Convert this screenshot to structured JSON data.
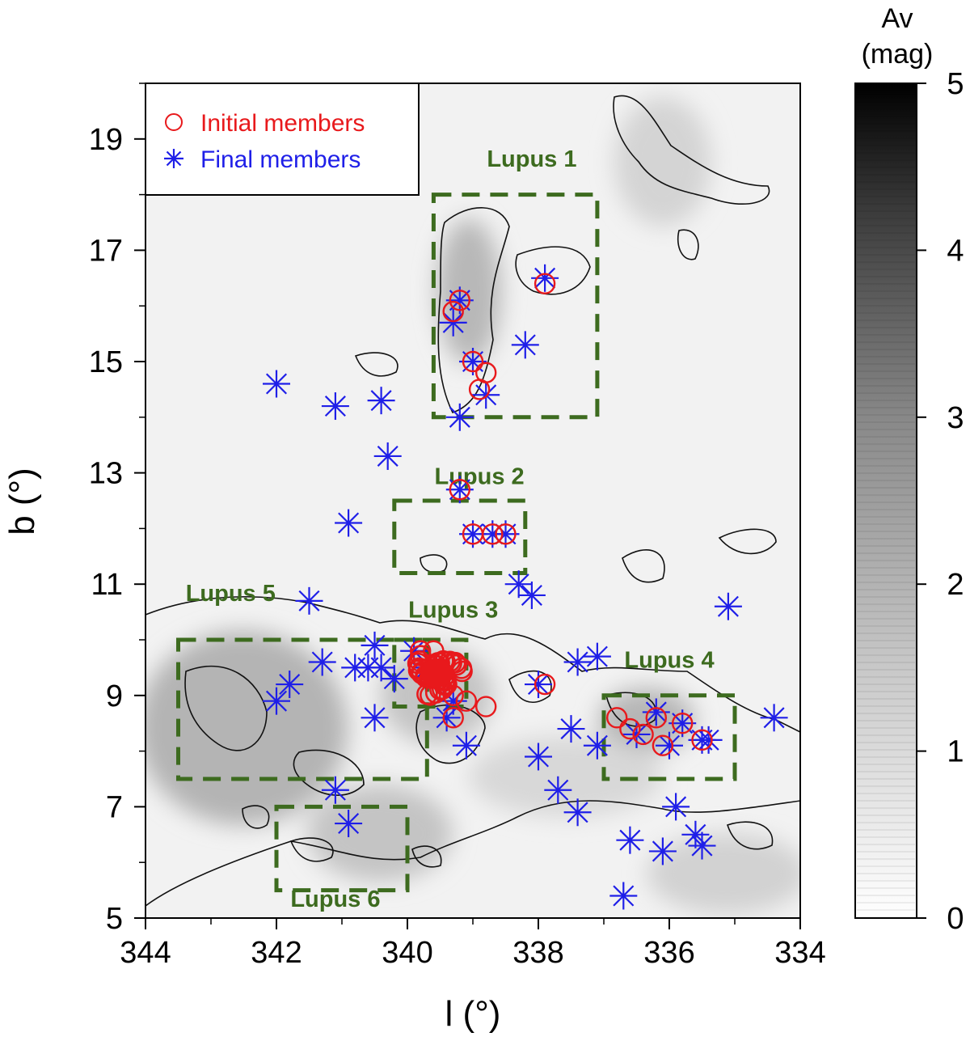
{
  "chart_data": {
    "type": "scatter",
    "xlabel": "l (°)",
    "ylabel": "b (°)",
    "xlim": [
      344,
      334
    ],
    "ylim": [
      5,
      20
    ],
    "x_ticks": [
      "344",
      "342",
      "340",
      "338",
      "336",
      "334"
    ],
    "y_ticks": [
      "5",
      "7",
      "9",
      "11",
      "13",
      "15",
      "17",
      "19"
    ],
    "background": "grayscale extinction map (Av) with black contour lines",
    "colorbar": {
      "title_line1": "Av",
      "title_line2": "(mag)",
      "range": [
        0,
        5
      ],
      "ticks": [
        "0",
        "1",
        "2",
        "3",
        "4",
        "5"
      ],
      "colormap": "white-to-black"
    },
    "legend": {
      "position": "top-left",
      "items": [
        {
          "label": "Initial members",
          "marker": "circle",
          "color": "#e8191c"
        },
        {
          "label": "Final members",
          "marker": "asterisk",
          "color": "#1f1fe8"
        }
      ]
    },
    "regions": [
      {
        "label": "Lupus 1",
        "l_range": [
          337.1,
          339.6
        ],
        "b_range": [
          14.0,
          18.0
        ],
        "label_at": [
          338.1,
          18.5
        ]
      },
      {
        "label": "Lupus 2",
        "l_range": [
          338.2,
          340.2
        ],
        "b_range": [
          11.2,
          12.5
        ],
        "label_at": [
          338.9,
          12.8
        ]
      },
      {
        "label": "Lupus 3",
        "l_range": [
          339.1,
          340.2
        ],
        "b_range": [
          8.8,
          10.0
        ],
        "label_at": [
          339.3,
          10.4
        ]
      },
      {
        "label": "Lupus 4",
        "l_range": [
          335.0,
          337.0
        ],
        "b_range": [
          7.5,
          9.0
        ],
        "label_at": [
          336.0,
          9.5
        ]
      },
      {
        "label": "Lupus 5",
        "l_range": [
          339.7,
          343.5
        ],
        "b_range": [
          7.5,
          10.0
        ],
        "label_at": [
          342.7,
          10.7
        ]
      },
      {
        "label": "Lupus 6",
        "l_range": [
          340.0,
          342.0
        ],
        "b_range": [
          5.5,
          7.0
        ],
        "label_at": [
          341.1,
          5.2
        ]
      }
    ],
    "series": [
      {
        "name": "Final members",
        "marker": "asterisk",
        "color": "#1f1fe8",
        "points": [
          [
            339.2,
            16.1
          ],
          [
            339.3,
            15.7
          ],
          [
            337.9,
            16.5
          ],
          [
            338.2,
            15.3
          ],
          [
            339.0,
            15.0
          ],
          [
            338.8,
            14.4
          ],
          [
            339.2,
            14.0
          ],
          [
            342.0,
            14.6
          ],
          [
            341.1,
            14.2
          ],
          [
            340.4,
            14.3
          ],
          [
            340.3,
            13.3
          ],
          [
            340.9,
            12.1
          ],
          [
            339.2,
            12.7
          ],
          [
            339.0,
            11.9
          ],
          [
            338.7,
            11.9
          ],
          [
            338.5,
            11.9
          ],
          [
            338.3,
            11.0
          ],
          [
            338.1,
            10.8
          ],
          [
            341.5,
            10.7
          ],
          [
            335.1,
            10.6
          ],
          [
            342.0,
            8.9
          ],
          [
            341.8,
            9.2
          ],
          [
            341.3,
            9.6
          ],
          [
            340.8,
            9.5
          ],
          [
            340.6,
            9.5
          ],
          [
            340.5,
            9.9
          ],
          [
            340.4,
            9.5
          ],
          [
            340.2,
            9.3
          ],
          [
            340.5,
            8.6
          ],
          [
            339.9,
            9.8
          ],
          [
            339.7,
            9.5
          ],
          [
            339.5,
            9.3
          ],
          [
            339.3,
            8.9
          ],
          [
            339.4,
            8.6
          ],
          [
            339.1,
            8.1
          ],
          [
            338.0,
            9.2
          ],
          [
            338.0,
            7.9
          ],
          [
            337.5,
            8.4
          ],
          [
            337.4,
            9.6
          ],
          [
            337.1,
            9.7
          ],
          [
            337.1,
            8.1
          ],
          [
            336.5,
            8.3
          ],
          [
            336.2,
            8.7
          ],
          [
            336.0,
            8.1
          ],
          [
            335.8,
            8.5
          ],
          [
            335.5,
            8.2
          ],
          [
            335.4,
            8.2
          ],
          [
            334.4,
            8.6
          ],
          [
            337.7,
            7.3
          ],
          [
            337.4,
            6.9
          ],
          [
            335.9,
            7.0
          ],
          [
            336.6,
            6.4
          ],
          [
            336.1,
            6.2
          ],
          [
            335.6,
            6.5
          ],
          [
            335.5,
            6.3
          ],
          [
            336.7,
            5.4
          ],
          [
            341.1,
            7.3
          ],
          [
            340.9,
            6.7
          ]
        ]
      },
      {
        "name": "Initial members",
        "marker": "circle",
        "color": "#e8191c",
        "points": [
          [
            339.2,
            16.1
          ],
          [
            339.3,
            15.9
          ],
          [
            337.9,
            16.4
          ],
          [
            339.0,
            15.0
          ],
          [
            338.8,
            14.8
          ],
          [
            338.9,
            14.5
          ],
          [
            339.2,
            12.7
          ],
          [
            339.0,
            11.9
          ],
          [
            338.7,
            11.9
          ],
          [
            338.5,
            11.9
          ],
          [
            339.8,
            9.8
          ],
          [
            339.6,
            9.8
          ],
          [
            339.5,
            9.3
          ],
          [
            339.4,
            9.2
          ],
          [
            339.3,
            9.0
          ],
          [
            339.1,
            8.9
          ],
          [
            338.8,
            8.8
          ],
          [
            339.3,
            8.6
          ],
          [
            337.9,
            9.2
          ],
          [
            336.8,
            8.6
          ],
          [
            336.6,
            8.4
          ],
          [
            336.4,
            8.3
          ],
          [
            336.2,
            8.6
          ],
          [
            336.1,
            8.1
          ],
          [
            335.8,
            8.5
          ],
          [
            335.5,
            8.2
          ]
        ]
      }
    ]
  }
}
